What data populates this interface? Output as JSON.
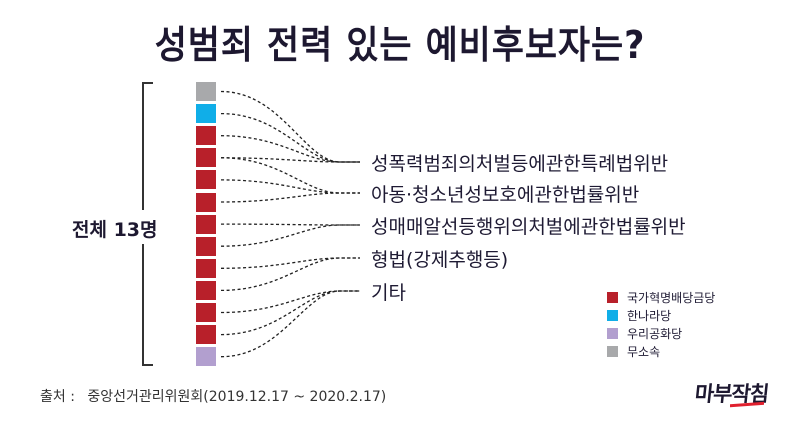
{
  "title": "성범죄 전력 있는 예비후보자는?",
  "total_label": "전체 13명",
  "colors": {
    "국가혁명배당금당": "#b8202a",
    "한나라당": "#10aee8",
    "우리공화당": "#b29fcf",
    "무소속": "#a8a9ab",
    "line": "#222222"
  },
  "candidates": [
    {
      "party": "무소속",
      "color": "#a8a9ab"
    },
    {
      "party": "한나라당",
      "color": "#10aee8"
    },
    {
      "party": "국가혁명배당금당",
      "color": "#b8202a"
    },
    {
      "party": "국가혁명배당금당",
      "color": "#b8202a"
    },
    {
      "party": "국가혁명배당금당",
      "color": "#b8202a"
    },
    {
      "party": "국가혁명배당금당",
      "color": "#b8202a"
    },
    {
      "party": "국가혁명배당금당",
      "color": "#b8202a"
    },
    {
      "party": "국가혁명배당금당",
      "color": "#b8202a"
    },
    {
      "party": "국가혁명배당금당",
      "color": "#b8202a"
    },
    {
      "party": "국가혁명배당금당",
      "color": "#b8202a"
    },
    {
      "party": "국가혁명배당금당",
      "color": "#b8202a"
    },
    {
      "party": "국가혁명배당금당",
      "color": "#b8202a"
    },
    {
      "party": "우리공화당",
      "color": "#b29fcf"
    }
  ],
  "categories": [
    {
      "label": "성폭력범죄의처벌등에관한특례법위반"
    },
    {
      "label": "아동·청소년성보호에관한법률위반"
    },
    {
      "label": "성매매알선등행위의처벌에관한법률위반"
    },
    {
      "label": "형법(강제추행등)"
    },
    {
      "label": "기타"
    }
  ],
  "links": [
    [
      0,
      0
    ],
    [
      1,
      0
    ],
    [
      2,
      0
    ],
    [
      3,
      0
    ],
    [
      3,
      1
    ],
    [
      4,
      1
    ],
    [
      5,
      1
    ],
    [
      6,
      2
    ],
    [
      7,
      2
    ],
    [
      8,
      3
    ],
    [
      9,
      3
    ],
    [
      10,
      4
    ],
    [
      11,
      4
    ],
    [
      12,
      4
    ]
  ],
  "legend": [
    {
      "label": "국가혁명배당금당",
      "color": "#b8202a"
    },
    {
      "label": "한나라당",
      "color": "#10aee8"
    },
    {
      "label": "우리공화당",
      "color": "#b29fcf"
    },
    {
      "label": "무소속",
      "color": "#a8a9ab"
    }
  ],
  "source": {
    "key": "출처 :",
    "text": "중앙선거관리위원회(2019.12.17 ~ 2020.2.17)"
  },
  "logo": "마부작침"
}
